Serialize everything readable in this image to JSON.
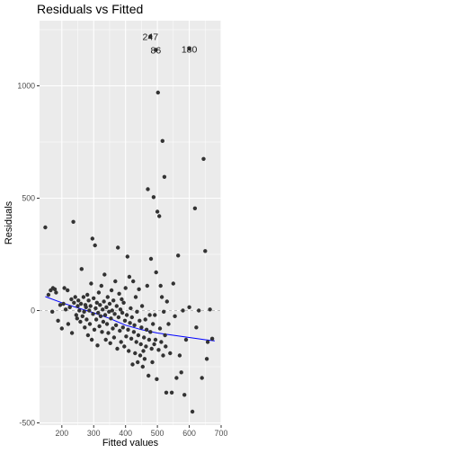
{
  "chart_data": {
    "type": "scatter",
    "title": "Residuals vs Fitted",
    "xlabel": "Fitted values",
    "ylabel": "Residuals",
    "xlim": [
      130,
      700
    ],
    "ylim": [
      -510,
      1290
    ],
    "x_ticks": [
      200,
      300,
      400,
      500,
      600,
      700
    ],
    "y_ticks": [
      -500,
      0,
      500,
      1000
    ],
    "x_tick_labels": [
      "200",
      "300",
      "400",
      "500",
      "600",
      "700"
    ],
    "y_tick_labels": [
      "-500",
      "0",
      "500",
      "1000"
    ],
    "grid": true,
    "reference_line": {
      "y": 0,
      "style": "dashed"
    },
    "colors": {
      "panel": "#ebebeb",
      "grid": "#ffffff",
      "points": "#333333",
      "smooth": "#0000ff",
      "reference": "#c0c0c0"
    },
    "points": [
      [
        148,
        370
      ],
      [
        158,
        70
      ],
      [
        165,
        90
      ],
      [
        170,
        -5
      ],
      [
        172,
        100
      ],
      [
        178,
        95
      ],
      [
        182,
        80
      ],
      [
        188,
        -45
      ],
      [
        195,
        25
      ],
      [
        200,
        -80
      ],
      [
        205,
        30
      ],
      [
        208,
        100
      ],
      [
        212,
        5
      ],
      [
        218,
        90
      ],
      [
        220,
        -60
      ],
      [
        225,
        15
      ],
      [
        230,
        50
      ],
      [
        232,
        -100
      ],
      [
        236,
        395
      ],
      [
        238,
        35
      ],
      [
        242,
        60
      ],
      [
        245,
        -20
      ],
      [
        248,
        -35
      ],
      [
        250,
        20
      ],
      [
        252,
        45
      ],
      [
        255,
        0
      ],
      [
        258,
        -50
      ],
      [
        260,
        30
      ],
      [
        262,
        185
      ],
      [
        265,
        -25
      ],
      [
        268,
        60
      ],
      [
        270,
        -5
      ],
      [
        272,
        -75
      ],
      [
        274,
        25
      ],
      [
        276,
        15
      ],
      [
        278,
        -40
      ],
      [
        280,
        70
      ],
      [
        282,
        -110
      ],
      [
        284,
        45
      ],
      [
        286,
        0
      ],
      [
        288,
        -60
      ],
      [
        290,
        20
      ],
      [
        292,
        120
      ],
      [
        294,
        -130
      ],
      [
        296,
        320
      ],
      [
        298,
        -15
      ],
      [
        300,
        55
      ],
      [
        302,
        -85
      ],
      [
        304,
        290
      ],
      [
        306,
        10
      ],
      [
        308,
        -40
      ],
      [
        310,
        35
      ],
      [
        312,
        -155
      ],
      [
        314,
        -10
      ],
      [
        316,
        80
      ],
      [
        318,
        -70
      ],
      [
        320,
        25
      ],
      [
        322,
        -25
      ],
      [
        324,
        110
      ],
      [
        326,
        -95
      ],
      [
        328,
        5
      ],
      [
        330,
        -50
      ],
      [
        332,
        40
      ],
      [
        334,
        160
      ],
      [
        336,
        -20
      ],
      [
        338,
        -130
      ],
      [
        340,
        15
      ],
      [
        342,
        -60
      ],
      [
        344,
        60
      ],
      [
        346,
        -100
      ],
      [
        348,
        -5
      ],
      [
        350,
        30
      ],
      [
        352,
        -145
      ],
      [
        354,
        -35
      ],
      [
        356,
        90
      ],
      [
        358,
        0
      ],
      [
        360,
        -80
      ],
      [
        362,
        45
      ],
      [
        364,
        -120
      ],
      [
        366,
        -15
      ],
      [
        368,
        130
      ],
      [
        370,
        -65
      ],
      [
        372,
        20
      ],
      [
        374,
        -170
      ],
      [
        376,
        280
      ],
      [
        378,
        -30
      ],
      [
        380,
        75
      ],
      [
        382,
        -90
      ],
      [
        384,
        5
      ],
      [
        386,
        -140
      ],
      [
        388,
        50
      ],
      [
        390,
        -10
      ],
      [
        392,
        -75
      ],
      [
        394,
        35
      ],
      [
        396,
        -160
      ],
      [
        398,
        -45
      ],
      [
        400,
        100
      ],
      [
        402,
        -115
      ],
      [
        404,
        -20
      ],
      [
        406,
        240
      ],
      [
        408,
        -85
      ],
      [
        410,
        -180
      ],
      [
        412,
        150
      ],
      [
        414,
        -55
      ],
      [
        416,
        10
      ],
      [
        418,
        -125
      ],
      [
        420,
        -30
      ],
      [
        422,
        -240
      ],
      [
        424,
        130
      ],
      [
        426,
        -95
      ],
      [
        428,
        -65
      ],
      [
        430,
        -190
      ],
      [
        432,
        60
      ],
      [
        434,
        -140
      ],
      [
        436,
        -5
      ],
      [
        438,
        -230
      ],
      [
        440,
        -110
      ],
      [
        442,
        95
      ],
      [
        444,
        -45
      ],
      [
        446,
        -200
      ],
      [
        448,
        -150
      ],
      [
        450,
        -75
      ],
      [
        452,
        20
      ],
      [
        454,
        -250
      ],
      [
        456,
        -180
      ],
      [
        458,
        -120
      ],
      [
        460,
        -215
      ],
      [
        462,
        -40
      ],
      [
        464,
        -160
      ],
      [
        466,
        -85
      ],
      [
        468,
        110
      ],
      [
        470,
        540
      ],
      [
        472,
        -290
      ],
      [
        474,
        -130
      ],
      [
        476,
        -20
      ],
      [
        478,
        -95
      ],
      [
        480,
        230
      ],
      [
        482,
        -170
      ],
      [
        484,
        -230
      ],
      [
        486,
        -60
      ],
      [
        488,
        505
      ],
      [
        490,
        -150
      ],
      [
        492,
        -20
      ],
      [
        494,
        -130
      ],
      [
        496,
        170
      ],
      [
        498,
        -305
      ],
      [
        500,
        440
      ],
      [
        502,
        970
      ],
      [
        504,
        -175
      ],
      [
        506,
        420
      ],
      [
        508,
        -80
      ],
      [
        510,
        110
      ],
      [
        512,
        -140
      ],
      [
        514,
        60
      ],
      [
        516,
        755
      ],
      [
        518,
        -200
      ],
      [
        520,
        -5
      ],
      [
        522,
        595
      ],
      [
        524,
        -110
      ],
      [
        526,
        -160
      ],
      [
        528,
        -365
      ],
      [
        530,
        40
      ],
      [
        535,
        -60
      ],
      [
        540,
        -190
      ],
      [
        545,
        -365
      ],
      [
        550,
        120
      ],
      [
        555,
        -25
      ],
      [
        560,
        -300
      ],
      [
        565,
        245
      ],
      [
        570,
        -200
      ],
      [
        575,
        -275
      ],
      [
        580,
        0
      ],
      [
        585,
        -375
      ],
      [
        590,
        -130
      ],
      [
        600,
        15
      ],
      [
        610,
        -450
      ],
      [
        618,
        455
      ],
      [
        622,
        -75
      ],
      [
        630,
        0
      ],
      [
        640,
        -300
      ],
      [
        645,
        675
      ],
      [
        650,
        265
      ],
      [
        655,
        -215
      ],
      [
        658,
        -140
      ],
      [
        665,
        5
      ],
      [
        672,
        -125
      ],
      [
        478,
        1220
      ],
      [
        495,
        1160
      ],
      [
        600,
        1165
      ]
    ],
    "labeled_points": [
      {
        "label": "247",
        "x": 478,
        "y": 1220
      },
      {
        "label": "86",
        "x": 495,
        "y": 1160
      },
      {
        "label": "180",
        "x": 600,
        "y": 1165
      }
    ],
    "smooth_line": [
      [
        148,
        62
      ],
      [
        200,
        35
      ],
      [
        250,
        12
      ],
      [
        300,
        -10
      ],
      [
        350,
        -35
      ],
      [
        400,
        -65
      ],
      [
        450,
        -85
      ],
      [
        500,
        -100
      ],
      [
        550,
        -110
      ],
      [
        600,
        -120
      ],
      [
        650,
        -130
      ],
      [
        680,
        -135
      ]
    ]
  }
}
